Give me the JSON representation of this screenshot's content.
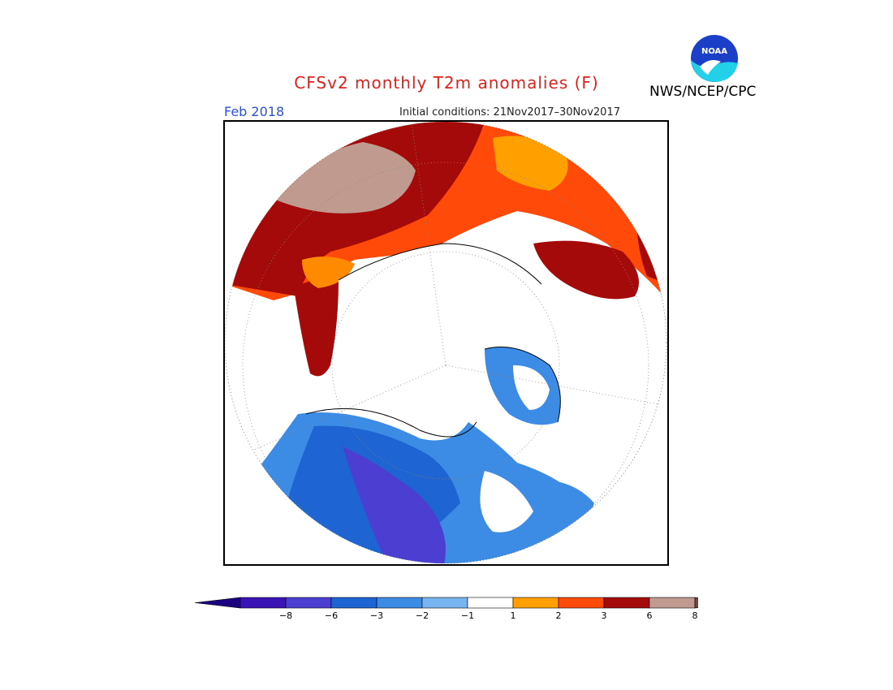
{
  "header": {
    "title": "CFSv2 monthly T2m anomalies (F)",
    "month": "Feb 2018",
    "initial_conditions": "Initial conditions: 21Nov2017–30Nov2017",
    "agency": "NWS/NCEP/CPC",
    "logo_text": "NOAA"
  },
  "colorbar": {
    "tick_labels": [
      "−8",
      "−6",
      "−3",
      "−2",
      "−1",
      "1",
      "2",
      "3",
      "6",
      "8"
    ],
    "colors": [
      "#3a14b4",
      "#4b3ed0",
      "#1e64d2",
      "#3c8ce6",
      "#78b4f0",
      "#ffffff",
      "#ffa000",
      "#ff4a0a",
      "#a50a0a",
      "#c09a8e"
    ],
    "end_colors": {
      "low": "#1a0080",
      "high": "#6e4a3c"
    }
  },
  "map": {
    "projection": "north polar stereographic",
    "field": "2m temperature anomaly"
  }
}
